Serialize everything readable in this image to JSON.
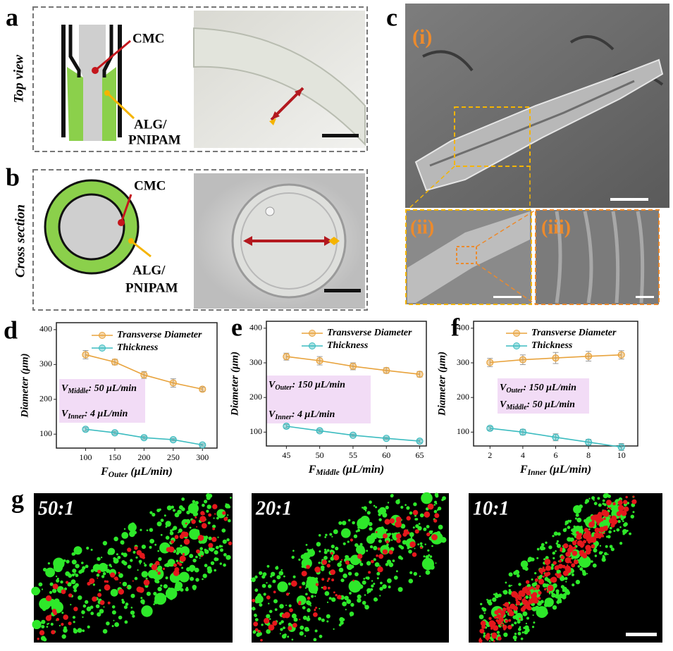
{
  "panels": {
    "a": {
      "label": "a",
      "side": "Top view",
      "cmc": "CMC",
      "alg": [
        "ALG/",
        "PNIPAM"
      ]
    },
    "b": {
      "label": "b",
      "side": "Cross section",
      "cmc": "CMC",
      "alg": [
        "ALG/",
        "PNIPAM"
      ]
    },
    "c": {
      "label": "c",
      "sub": [
        "(i)",
        "(ii)",
        "(iii)"
      ]
    },
    "g": {
      "label": "g",
      "ratios": [
        "50:1",
        "20:1",
        "10:1"
      ]
    }
  },
  "chart_data": [
    {
      "type": "line",
      "panel_label": "d",
      "ylabel": "Diameter (μm)",
      "xlabel": {
        "main": "F",
        "sub": "Outer",
        "rest": " (μL/min)"
      },
      "x": [
        100,
        150,
        200,
        250,
        300
      ],
      "xlim": [
        50,
        325
      ],
      "xticks": [
        100,
        150,
        200,
        250,
        300
      ],
      "ylim": [
        60,
        420
      ],
      "yticks": [
        100,
        200,
        300,
        400
      ],
      "series": [
        {
          "name": "Transverse Diameter",
          "color": "#e8a33d",
          "values": [
            328,
            307,
            270,
            247,
            229
          ],
          "errors": [
            12,
            8,
            10,
            12,
            6
          ]
        },
        {
          "name": "Thickness",
          "color": "#3cbcc0",
          "values": [
            114,
            104,
            90,
            84,
            69
          ],
          "errors": [
            5,
            4,
            4,
            3,
            3
          ]
        }
      ],
      "annotations": [
        {
          "main": "V",
          "sub": "Middle",
          "rest": ": 50 μL/min"
        },
        {
          "main": "V",
          "sub": "Inner",
          "rest": ": 4 μL/min"
        }
      ]
    },
    {
      "type": "line",
      "panel_label": "e",
      "ylabel": "Diameter (μm)",
      "xlabel": {
        "main": "F",
        "sub": "Middle",
        "rest": " (μL/min)"
      },
      "x": [
        45,
        50,
        55,
        60,
        65
      ],
      "xlim": [
        42,
        66
      ],
      "xticks": [
        45,
        50,
        55,
        60,
        65
      ],
      "ylim": [
        60,
        420
      ],
      "yticks": [
        100,
        200,
        300,
        400
      ],
      "series": [
        {
          "name": "Transverse Diameter",
          "color": "#e8a33d",
          "values": [
            318,
            306,
            290,
            278,
            267
          ],
          "errors": [
            10,
            12,
            10,
            8,
            8
          ]
        },
        {
          "name": "Thickness",
          "color": "#3cbcc0",
          "values": [
            117,
            104,
            91,
            82,
            74
          ],
          "errors": [
            5,
            4,
            3,
            3,
            4
          ]
        }
      ],
      "annotations": [
        {
          "main": "V",
          "sub": "Outer",
          "rest": ": 150 μL/min"
        },
        {
          "main": "V",
          "sub": "Inner",
          "rest": ": 4 μL/min"
        }
      ]
    },
    {
      "type": "line",
      "panel_label": "f",
      "ylabel": "Diameter (μm)",
      "xlabel": {
        "main": "F",
        "sub": "Inner",
        "rest": " (μL/min)"
      },
      "x": [
        2,
        4,
        6,
        8,
        10
      ],
      "xlim": [
        1,
        11
      ],
      "xticks": [
        2,
        4,
        6,
        8,
        10
      ],
      "ylim": [
        60,
        420
      ],
      "yticks": [
        100,
        200,
        300,
        400
      ],
      "series": [
        {
          "name": "Transverse Diameter",
          "color": "#e8a33d",
          "values": [
            301,
            309,
            314,
            319,
            323
          ],
          "errors": [
            12,
            14,
            16,
            14,
            12
          ]
        },
        {
          "name": "Thickness",
          "color": "#3cbcc0",
          "values": [
            111,
            100,
            85,
            71,
            57
          ],
          "errors": [
            5,
            8,
            10,
            8,
            10
          ]
        }
      ],
      "annotations": [
        {
          "main": "V",
          "sub": "Outer",
          "rest": ": 150 μL/min"
        },
        {
          "main": "V",
          "sub": "Middle",
          "rest": ": 50 μL/min"
        }
      ]
    }
  ]
}
